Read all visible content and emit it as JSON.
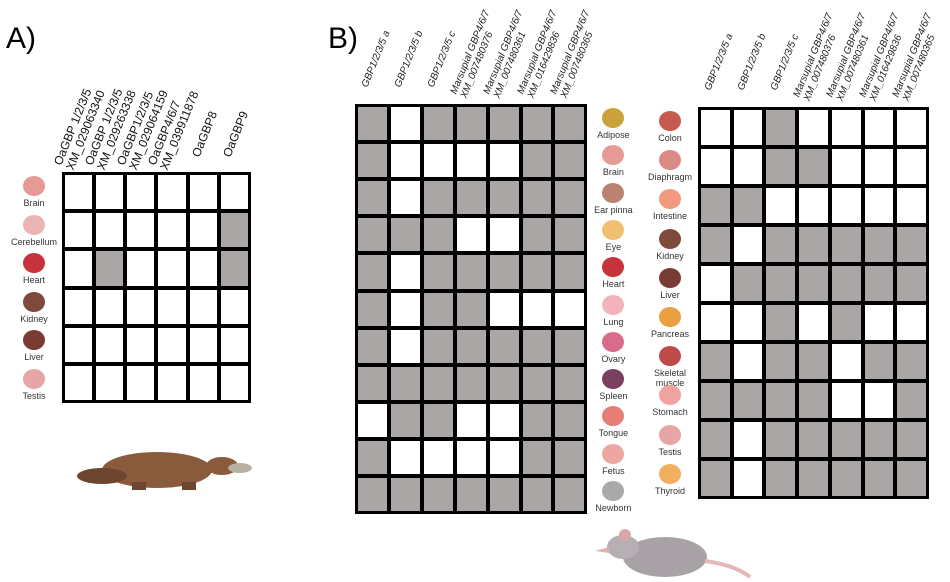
{
  "panel_a": {
    "label": "A)",
    "columns": [
      "OaGBP 1/2/3/5|XM_029063340",
      "OaGBP 1/2/3/5|XM_029263338",
      "OaGBP1/2/3/5|XM_029064159",
      "OaGBP4/6/7|XM_039911878",
      "OaGBP8",
      "OaGBP9"
    ],
    "rows": [
      {
        "tissue": "Brain",
        "color": "#e59a95",
        "cells": [
          0,
          0,
          0,
          0,
          0,
          0
        ]
      },
      {
        "tissue": "Cerebellum",
        "color": "#eab5b3",
        "cells": [
          0,
          0,
          0,
          0,
          0,
          1
        ]
      },
      {
        "tissue": "Heart",
        "color": "#c6333a",
        "cells": [
          0,
          1,
          0,
          0,
          0,
          1
        ]
      },
      {
        "tissue": "Kidney",
        "color": "#7e4a3c",
        "cells": [
          0,
          0,
          0,
          0,
          0,
          0
        ]
      },
      {
        "tissue": "Liver",
        "color": "#7a3b34",
        "cells": [
          0,
          0,
          0,
          0,
          0,
          0
        ]
      },
      {
        "tissue": "Testis",
        "color": "#e6a6a6",
        "cells": [
          0,
          0,
          0,
          0,
          0,
          0
        ]
      }
    ],
    "animal": "platypus"
  },
  "panel_b": {
    "label": "B)",
    "columns": [
      "GBP1/2/3/5 a",
      "GBP1/2/3/5 b",
      "GBP1/2/3/5 c",
      "Marsupial GBP4/6/7|XM_007480376",
      "Marsupial GBP4/6/7|XM_007480361",
      "Marsupial GBP4/6/7|XM_016429836",
      "Marsupial GBP4/6/7|XM_007480365"
    ],
    "left_rows": [
      {
        "tissue": "Adipose",
        "color": "#c9a23a",
        "cells": [
          1,
          0,
          1,
          1,
          1,
          1,
          1
        ]
      },
      {
        "tissue": "Brain",
        "color": "#e59a95",
        "cells": [
          1,
          0,
          0,
          0,
          0,
          1,
          1
        ]
      },
      {
        "tissue": "Ear pinna",
        "color": "#b98370",
        "cells": [
          1,
          0,
          1,
          1,
          1,
          1,
          1
        ]
      },
      {
        "tissue": "Eye",
        "color": "#f0c070",
        "cells": [
          1,
          1,
          1,
          0,
          0,
          1,
          1
        ]
      },
      {
        "tissue": "Heart",
        "color": "#c6333a",
        "cells": [
          1,
          0,
          1,
          1,
          1,
          1,
          1
        ]
      },
      {
        "tissue": "Lung",
        "color": "#f2b3bd",
        "cells": [
          1,
          0,
          1,
          1,
          0,
          0,
          0
        ]
      },
      {
        "tissue": "Ovary",
        "color": "#d96c8a",
        "cells": [
          1,
          0,
          1,
          1,
          1,
          1,
          1
        ]
      },
      {
        "tissue": "Spleen",
        "color": "#7b3f62",
        "cells": [
          1,
          1,
          1,
          1,
          1,
          1,
          1
        ]
      },
      {
        "tissue": "Tongue",
        "color": "#e57e76",
        "cells": [
          0,
          1,
          1,
          0,
          0,
          1,
          1
        ]
      },
      {
        "tissue": "Fetus",
        "color": "#eba7a0",
        "cells": [
          1,
          0,
          0,
          0,
          0,
          1,
          1
        ]
      },
      {
        "tissue": "Newborn",
        "color": "#a9a9a9",
        "cells": [
          1,
          1,
          1,
          1,
          1,
          1,
          1
        ]
      }
    ],
    "right_rows": [
      {
        "tissue": "Colon",
        "color": "#c65a4e",
        "cells": [
          0,
          0,
          1,
          0,
          0,
          0,
          0
        ]
      },
      {
        "tissue": "Diaphragm",
        "color": "#d98a82",
        "cells": [
          0,
          0,
          1,
          1,
          0,
          0,
          0
        ]
      },
      {
        "tissue": "Intestine",
        "color": "#f19a80",
        "cells": [
          1,
          1,
          0,
          0,
          0,
          0,
          0
        ]
      },
      {
        "tissue": "Kidney",
        "color": "#7e4a3c",
        "cells": [
          1,
          0,
          1,
          1,
          1,
          1,
          1
        ]
      },
      {
        "tissue": "Liver",
        "color": "#7a3b34",
        "cells": [
          0,
          1,
          1,
          1,
          1,
          1,
          1
        ]
      },
      {
        "tissue": "Pancreas",
        "color": "#eaa040",
        "cells": [
          0,
          0,
          1,
          0,
          1,
          0,
          0
        ]
      },
      {
        "tissue": "Skeletal muscle",
        "color": "#c04a4a",
        "cells": [
          1,
          0,
          1,
          1,
          0,
          1,
          1
        ]
      },
      {
        "tissue": "Stomach",
        "color": "#f0a3a0",
        "cells": [
          1,
          1,
          1,
          1,
          0,
          0,
          1
        ]
      },
      {
        "tissue": "Testis",
        "color": "#e6a6a6",
        "cells": [
          1,
          0,
          1,
          1,
          1,
          1,
          1
        ]
      },
      {
        "tissue": "Thyroid",
        "color": "#f0b060",
        "cells": [
          1,
          0,
          1,
          1,
          1,
          1,
          1
        ]
      }
    ],
    "animal": "opossum"
  },
  "colors": {
    "expressed": "#aaa6a6",
    "not_expressed": "#ffffff",
    "grid": "#000000"
  }
}
